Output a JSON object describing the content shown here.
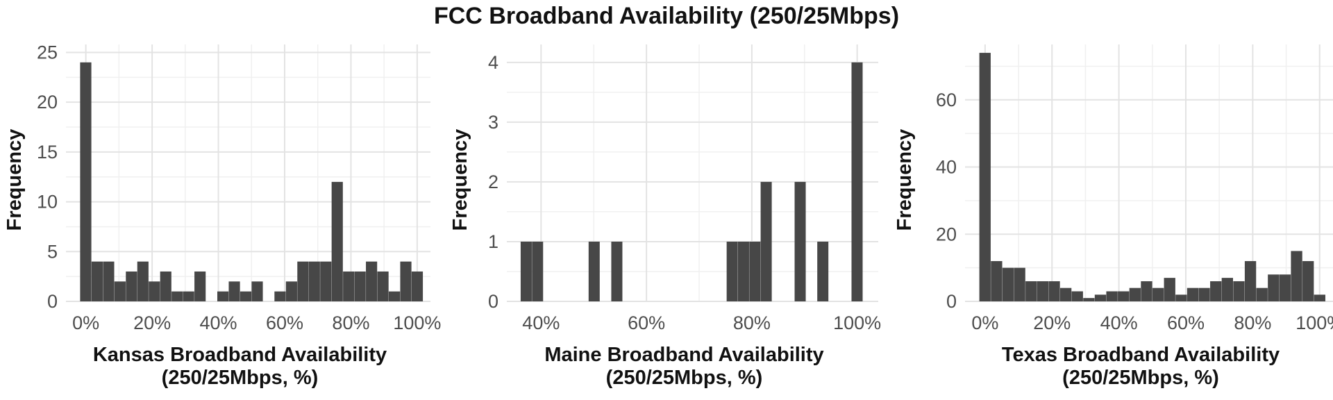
{
  "title": "FCC Broadband Availability (250/25Mbps)",
  "chart_data": [
    {
      "type": "bar",
      "xlabel": [
        "Kansas Broadband Availability",
        "(250/25Mbps, %)"
      ],
      "ylabel": "Frequency",
      "xlim": [
        -6,
        104
      ],
      "ylim": [
        0,
        25.8
      ],
      "x_ticks": [
        0,
        20,
        40,
        60,
        80,
        100
      ],
      "x_tick_labels": [
        "0%",
        "20%",
        "40%",
        "60%",
        "80%",
        "100%"
      ],
      "y_ticks": [
        0,
        5,
        10,
        15,
        20,
        25
      ],
      "y_tick_labels": [
        "0",
        "5",
        "10",
        "15",
        "20",
        "25"
      ],
      "grid": true,
      "bin_width": 3.45,
      "x": [
        0,
        3.45,
        6.9,
        10.35,
        13.8,
        17.25,
        20.7,
        24.15,
        27.6,
        31.05,
        34.5,
        37.95,
        41.4,
        44.85,
        48.3,
        51.75,
        55.2,
        58.65,
        62.1,
        65.55,
        69.0,
        72.45,
        75.9,
        79.35,
        82.8,
        86.25,
        89.7,
        93.15,
        96.6,
        100.05
      ],
      "values": [
        24,
        4,
        4,
        2,
        3,
        4,
        2,
        3,
        1,
        1,
        3,
        0,
        1,
        2,
        1,
        2,
        0,
        1,
        2,
        4,
        4,
        4,
        12,
        3,
        3,
        4,
        3,
        1,
        4,
        3
      ]
    },
    {
      "type": "bar",
      "xlabel": [
        "Maine Broadband Availability",
        "(250/25Mbps, %)"
      ],
      "ylabel": "Frequency",
      "xlim": [
        33.5,
        104
      ],
      "ylim": [
        0,
        4.3
      ],
      "x_ticks": [
        40,
        60,
        80,
        100
      ],
      "x_tick_labels": [
        "40%",
        "60%",
        "80%",
        "100%"
      ],
      "y_ticks": [
        0,
        1,
        2,
        3,
        4
      ],
      "y_tick_labels": [
        "0",
        "1",
        "2",
        "3",
        "4"
      ],
      "grid": true,
      "bin_width": 2.15,
      "x": [
        37.2,
        39.35,
        50.1,
        54.4,
        76.3,
        78.45,
        80.6,
        82.75,
        89.2,
        93.5,
        100.0
      ],
      "values": [
        1,
        1,
        1,
        1,
        1,
        1,
        1,
        2,
        2,
        1,
        4
      ]
    },
    {
      "type": "bar",
      "xlabel": [
        "Texas Broadband Availability",
        "(250/25Mbps, %)"
      ],
      "ylabel": "Frequency",
      "xlim": [
        -6,
        104
      ],
      "ylim": [
        0,
        76.5
      ],
      "x_ticks": [
        0,
        20,
        40,
        60,
        80,
        100
      ],
      "x_tick_labels": [
        "0%",
        "20%",
        "40%",
        "60%",
        "80%",
        "100%"
      ],
      "y_ticks": [
        0,
        20,
        40,
        60
      ],
      "y_tick_labels": [
        "0",
        "20",
        "40",
        "60"
      ],
      "grid": true,
      "bin_width": 3.45,
      "x": [
        0,
        3.45,
        6.9,
        10.35,
        13.8,
        17.25,
        20.7,
        24.15,
        27.6,
        31.05,
        34.5,
        37.95,
        41.4,
        44.85,
        48.3,
        51.75,
        55.2,
        58.65,
        62.1,
        65.55,
        69.0,
        72.45,
        75.9,
        79.35,
        82.8,
        86.25,
        89.7,
        93.15,
        96.6,
        100.05
      ],
      "values": [
        74,
        12,
        10,
        10,
        6,
        6,
        6,
        4,
        3,
        1,
        2,
        3,
        3,
        4,
        6,
        4,
        7,
        2,
        4,
        4,
        6,
        7,
        6,
        12,
        4,
        8,
        8,
        15,
        12,
        2
      ]
    }
  ]
}
